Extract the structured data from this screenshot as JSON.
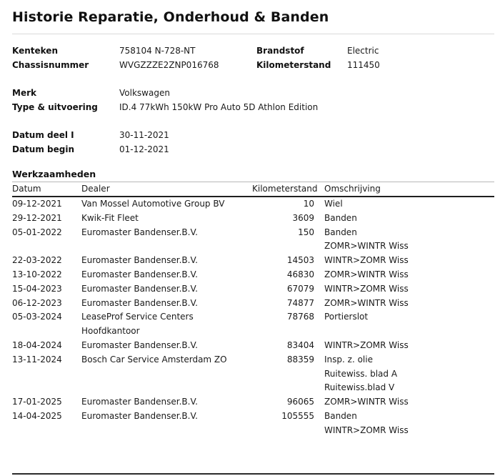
{
  "title": "Historie Reparatie, Onderhoud & Banden",
  "vehicle_info": {
    "kenteken_label": "Kenteken",
    "kenteken_value": "758104 N-728-NT",
    "brandstof_label": "Brandstof",
    "brandstof_value": "Electric",
    "chassisnummer_label": "Chassisnummer",
    "chassisnummer_value": "WVGZZZE2ZNP016768",
    "kilometerstand_label": "Kilometerstand",
    "kilometerstand_value": "111450",
    "merk_label": "Merk",
    "merk_value": "Volkswagen",
    "type_label": "Type & uitvoering",
    "type_value": "ID.4 77kWh 150kW Pro Auto 5D Athlon Edition",
    "datum_deel1_label": "Datum deel I",
    "datum_deel1_value": "30-11-2021",
    "datum_begin_label": "Datum begin",
    "datum_begin_value": "01-12-2021"
  },
  "werkzaamheden": {
    "section_title": "Werkzaamheden",
    "columns": [
      "Datum",
      "Dealer",
      "Kilometerstand",
      "Omschrijving"
    ],
    "rows": [
      {
        "datum": "09-12-2021",
        "dealer": "Van Mossel Automotive Group BV",
        "kilometerstand": "10",
        "omschrijving": "Wiel"
      },
      {
        "datum": "29-12-2021",
        "dealer": "Kwik-Fit Fleet",
        "kilometerstand": "3609",
        "omschrijving": "Banden"
      },
      {
        "datum": "05-01-2022",
        "dealer": "Euromaster Bandenser.B.V.",
        "kilometerstand": "150",
        "omschrijving": "Banden"
      },
      {
        "datum": "",
        "dealer": "",
        "kilometerstand": "",
        "omschrijving": "ZOMR>WINTR Wiss"
      },
      {
        "datum": "22-03-2022",
        "dealer": "Euromaster Bandenser.B.V.",
        "kilometerstand": "14503",
        "omschrijving": "WINTR>ZOMR Wiss"
      },
      {
        "datum": "13-10-2022",
        "dealer": "Euromaster Bandenser.B.V.",
        "kilometerstand": "46830",
        "omschrijving": "ZOMR>WINTR Wiss"
      },
      {
        "datum": "15-04-2023",
        "dealer": "Euromaster Bandenser.B.V.",
        "kilometerstand": "67079",
        "omschrijving": "WINTR>ZOMR Wiss"
      },
      {
        "datum": "06-12-2023",
        "dealer": "Euromaster Bandenser.B.V.",
        "kilometerstand": "74877",
        "omschrijving": "ZOMR>WINTR Wiss"
      },
      {
        "datum": "05-03-2024",
        "dealer": "LeaseProf Service Centers Hoofdkantoor",
        "kilometerstand": "78768",
        "omschrijving": "Portierslot"
      },
      {
        "datum": "18-04-2024",
        "dealer": "Euromaster Bandenser.B.V.",
        "kilometerstand": "83404",
        "omschrijving": "WINTR>ZOMR Wiss"
      },
      {
        "datum": "13-11-2024",
        "dealer": "Bosch Car Service Amsterdam ZO",
        "kilometerstand": "88359",
        "omschrijving": "Insp. z. olie"
      },
      {
        "datum": "",
        "dealer": "",
        "kilometerstand": "",
        "omschrijving": "Ruitewiss. blad A"
      },
      {
        "datum": "",
        "dealer": "",
        "kilometerstand": "",
        "omschrijving": "Ruitewiss.blad V"
      },
      {
        "datum": "17-01-2025",
        "dealer": "Euromaster Bandenser.B.V.",
        "kilometerstand": "96065",
        "omschrijving": "ZOMR>WINTR Wiss"
      },
      {
        "datum": "14-04-2025",
        "dealer": "Euromaster Bandenser.B.V.",
        "kilometerstand": "105555",
        "omschrijving": "Banden"
      },
      {
        "datum": "",
        "dealer": "",
        "kilometerstand": "",
        "omschrijving": "WINTR>ZOMR Wiss"
      }
    ]
  }
}
